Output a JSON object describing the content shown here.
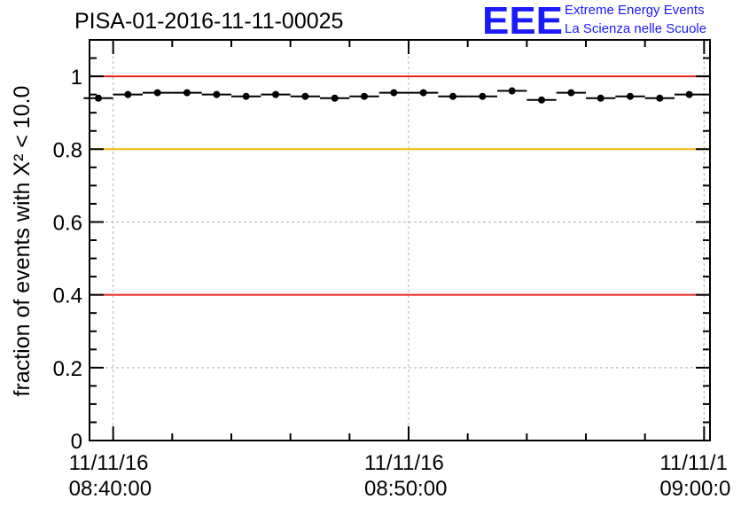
{
  "title": "PISA-01-2016-11-11-00025",
  "logo": {
    "mark": "EEE",
    "line1": "Extreme Energy Events",
    "line2": "La Scienza nelle Scuole",
    "color": "#1a1aff"
  },
  "chart_data": {
    "type": "scatter",
    "title": "PISA-01-2016-11-11-00025",
    "ylabel": "fraction of events with X² < 10.0",
    "ylim": [
      0,
      1.1
    ],
    "yticks": [
      "0",
      "0.2",
      "0.4",
      "0.6",
      "0.8",
      "1"
    ],
    "xlim": [
      "2016-11-11 08:39:12",
      "2016-11-11 09:00:12"
    ],
    "xticks": [
      {
        "date": "11/11/16",
        "time": "08:40:00"
      },
      {
        "date": "11/11/16",
        "time": "08:50:00"
      },
      {
        "date": "11/11/1",
        "time": "09:00:0"
      }
    ],
    "grid": true,
    "reference_lines": [
      {
        "y": 1.0,
        "color": "#e8251e"
      },
      {
        "y": 0.8,
        "color": "#f5b800"
      },
      {
        "y": 0.4,
        "color": "#e8251e"
      }
    ],
    "series": [
      {
        "x": [
          "08:39:30",
          "08:40:30",
          "08:41:30",
          "08:42:30",
          "08:43:30",
          "08:44:30",
          "08:45:30",
          "08:46:30",
          "08:47:30",
          "08:48:30",
          "08:49:30",
          "08:50:30",
          "08:51:30",
          "08:52:30",
          "08:53:30",
          "08:54:30",
          "08:55:30",
          "08:56:30",
          "08:57:30",
          "08:58:30",
          "08:59:30"
        ],
        "y": [
          0.94,
          0.95,
          0.955,
          0.955,
          0.95,
          0.945,
          0.95,
          0.945,
          0.94,
          0.945,
          0.955,
          0.955,
          0.945,
          0.945,
          0.96,
          0.935,
          0.955,
          0.94,
          0.945,
          0.94,
          0.95
        ],
        "marker_color": "#000000"
      }
    ]
  }
}
